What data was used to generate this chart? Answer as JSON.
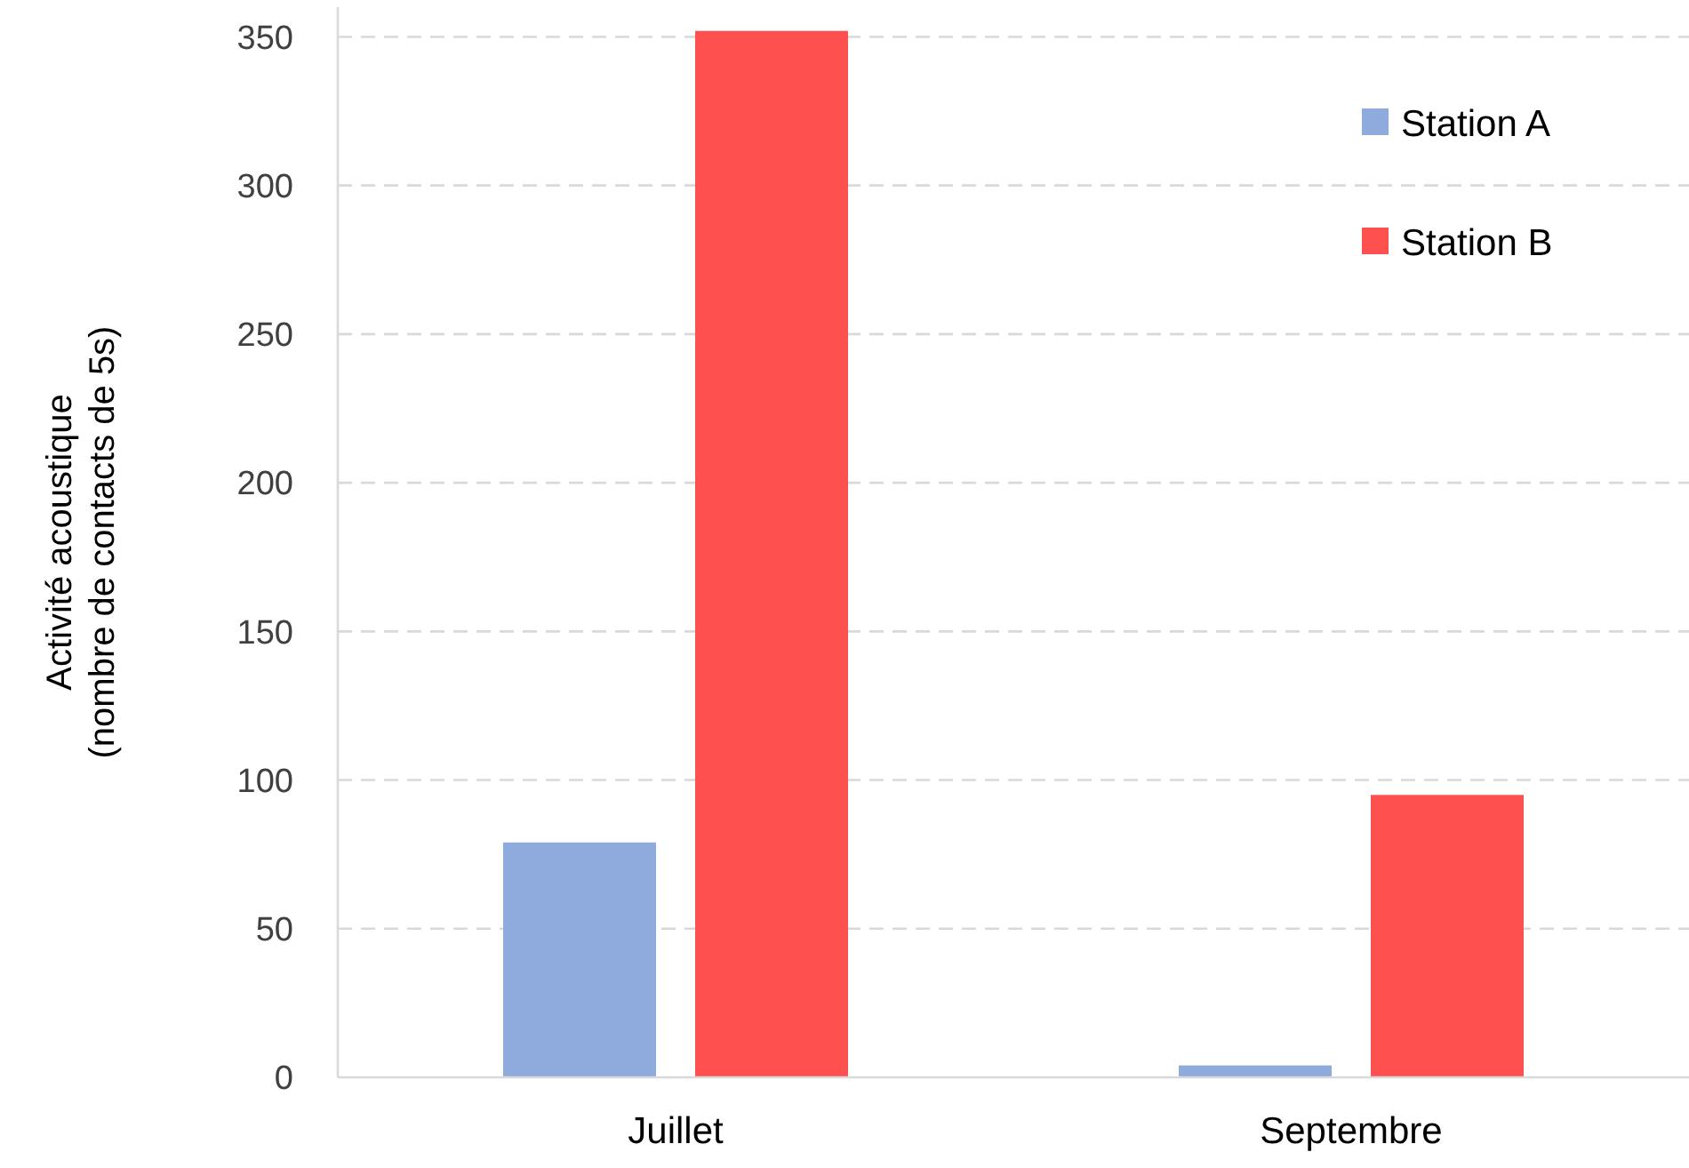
{
  "chart_data": {
    "type": "bar",
    "ylabel": "Activité acoustique\n(nombre de contacts de 5s)",
    "categories": [
      "Juillet",
      "Septembre"
    ],
    "series": [
      {
        "name": "Station A",
        "color": "#8faadc",
        "values": [
          79,
          4
        ]
      },
      {
        "name": "Station B",
        "color": "#ff5050",
        "values": [
          352,
          95
        ]
      }
    ],
    "ylim": [
      0,
      360
    ],
    "yticks": [
      0,
      50,
      100,
      150,
      200,
      250,
      300,
      350
    ],
    "grid": "y",
    "legend": "top right"
  }
}
